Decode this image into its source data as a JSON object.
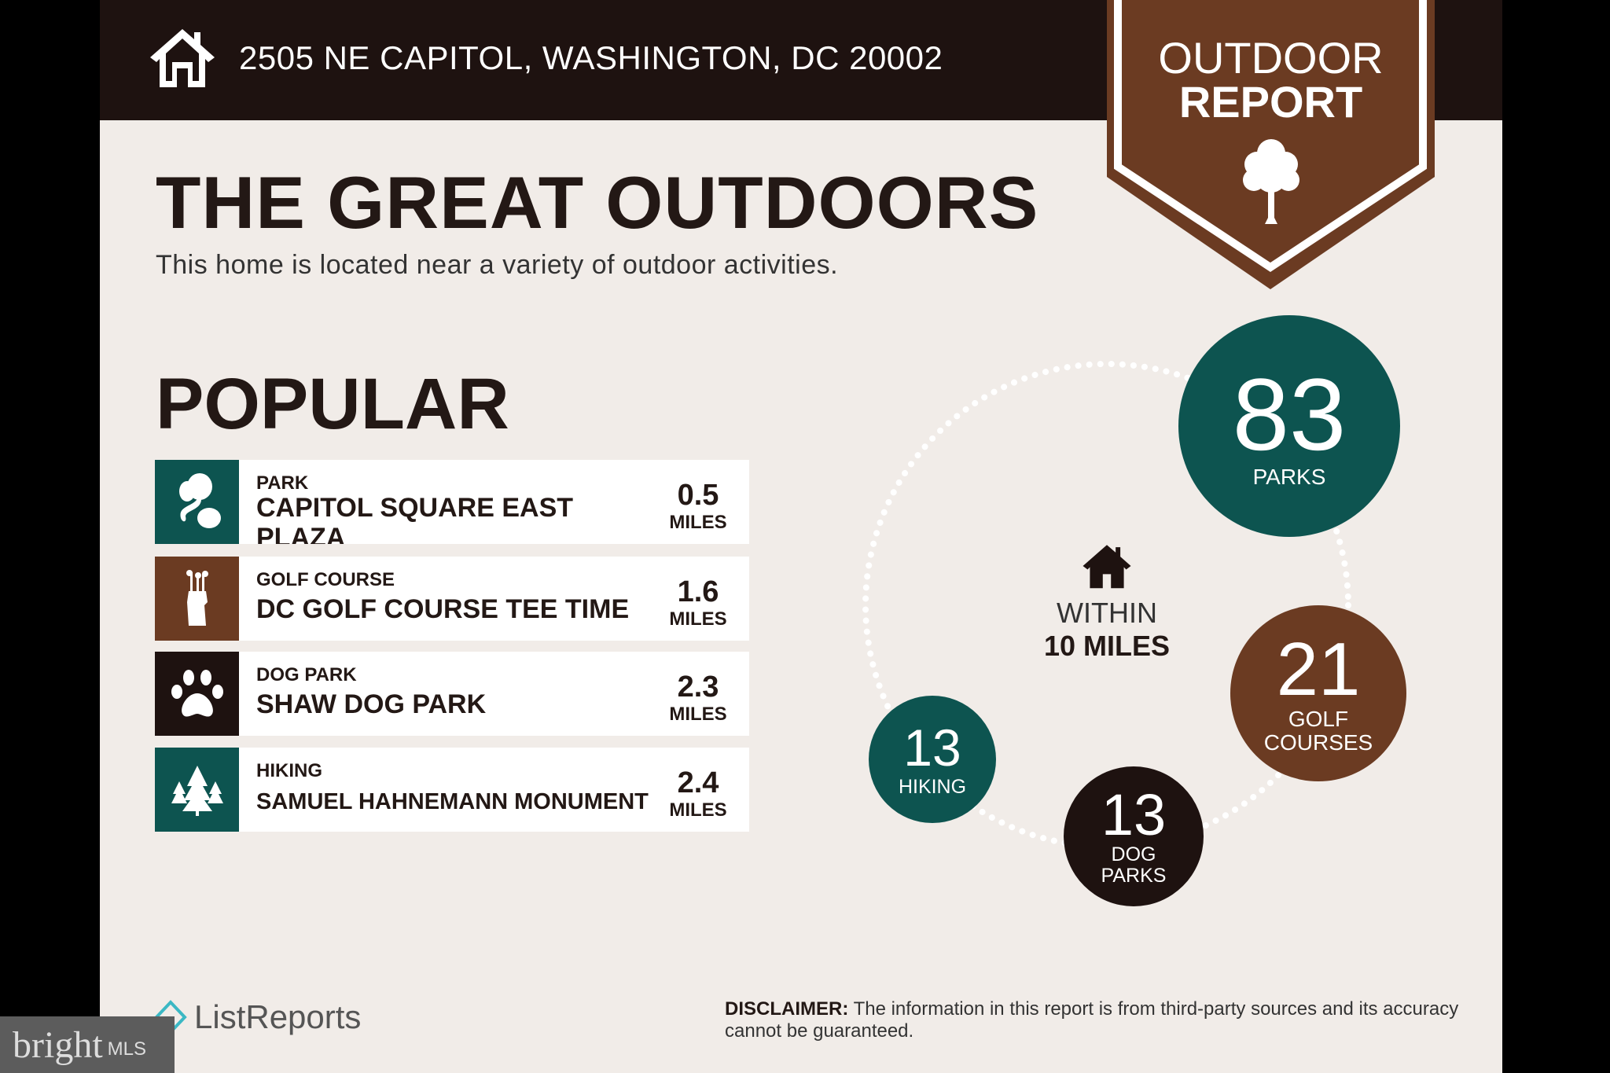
{
  "header": {
    "address": "2505 NE CAPITOL, WASHINGTON, DC 20002"
  },
  "badge": {
    "line1": "OUTDOOR",
    "line2": "REPORT"
  },
  "title": "THE GREAT OUTDOORS",
  "subtitle": "This home is located near a variety of outdoor activities.",
  "popular": {
    "heading": "POPULAR",
    "items": [
      {
        "category": "PARK",
        "name": "CAPITOL SQUARE EAST PLAZA",
        "distance": "0.5",
        "unit": "MILES",
        "icon": "park-trees-icon",
        "color": "#0d5450"
      },
      {
        "category": "GOLF COURSE",
        "name": "DC GOLF COURSE TEE TIME",
        "distance": "1.6",
        "unit": "MILES",
        "icon": "golf-bag-icon",
        "color": "#6b3b22"
      },
      {
        "category": "DOG PARK",
        "name": "SHAW DOG PARK",
        "distance": "2.3",
        "unit": "MILES",
        "icon": "paw-icon",
        "color": "#1e1210"
      },
      {
        "category": "HIKING",
        "name": "SAMUEL HAHNEMANN MONUMENT",
        "distance": "2.4",
        "unit": "MILES",
        "icon": "pine-trees-icon",
        "color": "#0d5450"
      }
    ]
  },
  "summary": {
    "within1": "WITHIN",
    "within2": "10 MILES",
    "parks": {
      "count": "83",
      "label": "PARKS"
    },
    "golf": {
      "count": "21",
      "label1": "GOLF",
      "label2": "COURSES"
    },
    "dog": {
      "count": "13",
      "label1": "DOG",
      "label2": "PARKS"
    },
    "hiking": {
      "count": "13",
      "label": "HIKING"
    }
  },
  "footer": {
    "brand": "ListReports",
    "disclaimer_label": "DISCLAIMER:",
    "disclaimer_text": " The information in this report is from third-party sources and its accuracy cannot be guaranteed."
  },
  "watermark": {
    "brand": "bright",
    "suffix": "MLS"
  },
  "colors": {
    "teal": "#0d5450",
    "brown": "#6b3b22",
    "dark": "#1e1210",
    "bg": "#f1ece8"
  }
}
